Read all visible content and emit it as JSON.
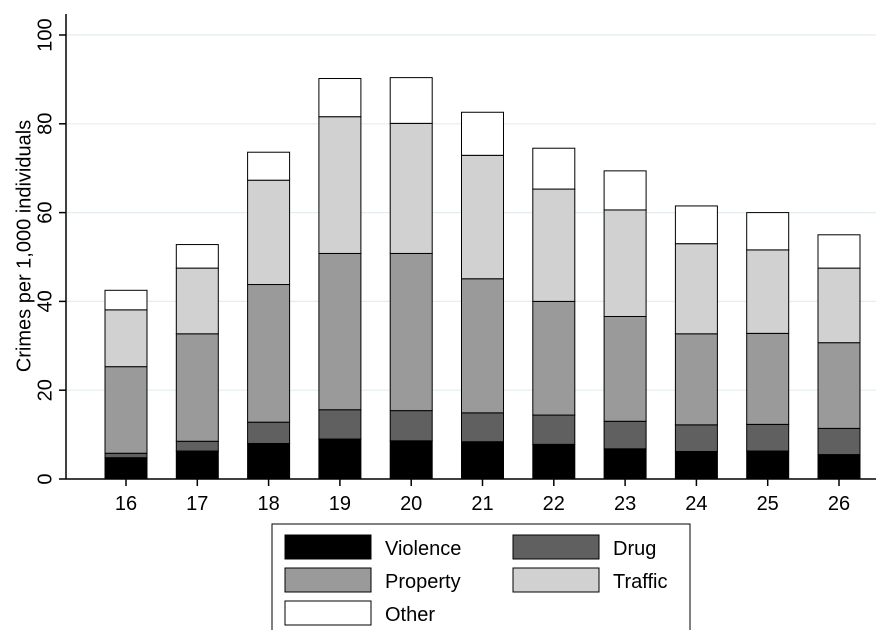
{
  "chart_data": {
    "type": "bar",
    "stacked": true,
    "title": "",
    "xlabel": "",
    "ylabel": "Crimes per 1,000 individuals",
    "ylim": [
      0,
      100
    ],
    "yticks": [
      0,
      20,
      40,
      60,
      80,
      100
    ],
    "grid": true,
    "legend_position": "bottom",
    "categories": [
      "16",
      "17",
      "18",
      "19",
      "20",
      "21",
      "22",
      "23",
      "24",
      "25",
      "26"
    ],
    "series": [
      {
        "name": "Violence",
        "color": "#000000",
        "values": [
          4.8,
          6.3,
          8.0,
          9.0,
          8.6,
          8.4,
          7.8,
          6.8,
          6.2,
          6.3,
          5.5
        ]
      },
      {
        "name": "Drug",
        "color": "#606060",
        "values": [
          1.0,
          2.2,
          4.8,
          6.6,
          6.8,
          6.5,
          6.6,
          6.2,
          6.0,
          6.0,
          5.9
        ]
      },
      {
        "name": "Property",
        "color": "#9a9a9a",
        "values": [
          19.5,
          24.2,
          31.0,
          35.2,
          35.4,
          30.2,
          25.6,
          23.6,
          20.5,
          20.5,
          19.3
        ]
      },
      {
        "name": "Traffic",
        "color": "#d1d1d1",
        "values": [
          12.8,
          14.8,
          23.5,
          30.8,
          29.3,
          27.8,
          25.3,
          24.0,
          20.3,
          18.8,
          16.8
        ]
      },
      {
        "name": "Other",
        "color": "#ffffff",
        "values": [
          4.4,
          5.3,
          6.3,
          8.6,
          10.3,
          9.7,
          9.2,
          8.8,
          8.5,
          8.4,
          7.5
        ]
      }
    ]
  }
}
